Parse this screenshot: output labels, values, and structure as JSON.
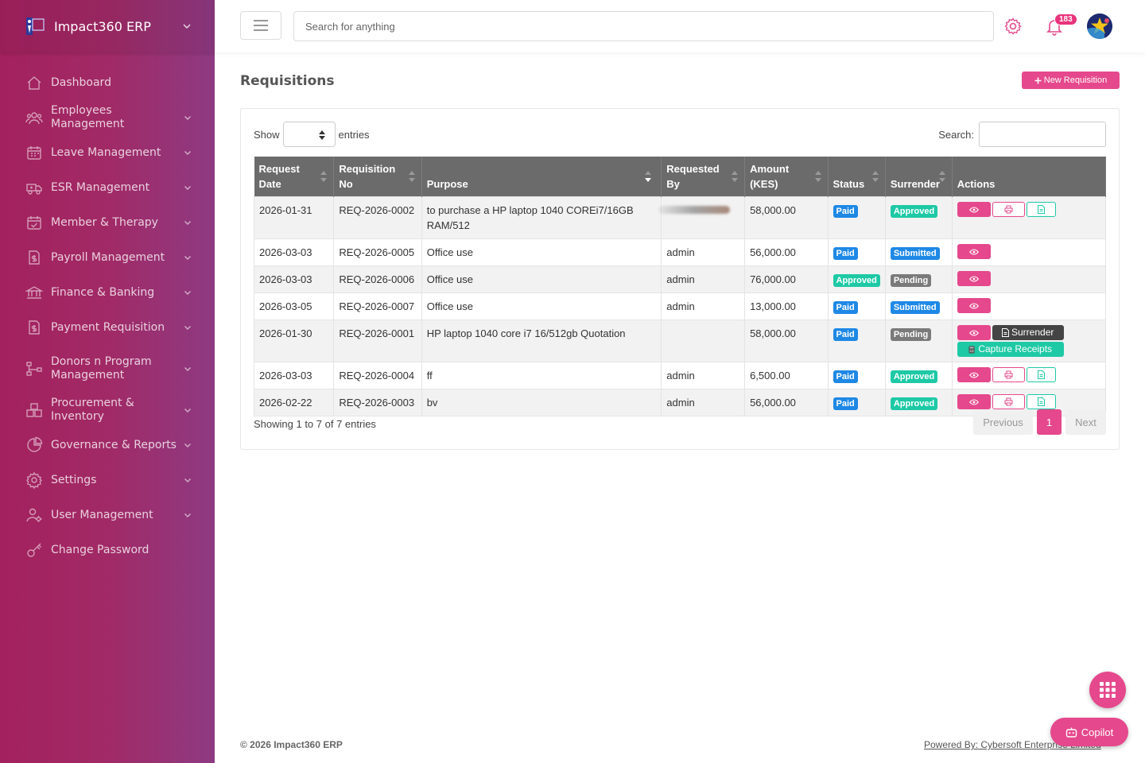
{
  "sidebar": {
    "brand": "Impact360 ERP",
    "items": [
      {
        "label": "Dashboard",
        "icon": "home-icon",
        "caret": false
      },
      {
        "label": "Employees Management",
        "icon": "users-icon",
        "caret": true
      },
      {
        "label": "Leave Management",
        "icon": "calendar-icon",
        "caret": true
      },
      {
        "label": "ESR Management",
        "icon": "truck-icon",
        "caret": true
      },
      {
        "label": "Member & Therapy",
        "icon": "calendar-check-icon",
        "caret": true
      },
      {
        "label": "Payroll Management",
        "icon": "invoice-icon",
        "caret": true
      },
      {
        "label": "Finance & Banking",
        "icon": "bank-icon",
        "caret": true
      },
      {
        "label": "Payment Requisition",
        "icon": "invoice-dollar-icon",
        "caret": true
      },
      {
        "label": "Donors n Program Management",
        "icon": "network-icon",
        "caret": true
      },
      {
        "label": "Procurement & Inventory",
        "icon": "boxes-icon",
        "caret": true
      },
      {
        "label": "Governance & Reports",
        "icon": "pie-chart-icon",
        "caret": true
      },
      {
        "label": "Settings",
        "icon": "gear-icon",
        "caret": true
      },
      {
        "label": "User Management",
        "icon": "user-gear-icon",
        "caret": true
      },
      {
        "label": "Change Password",
        "icon": "key-icon",
        "caret": false
      }
    ]
  },
  "header": {
    "search_placeholder": "Search for anything",
    "notification_count": "183"
  },
  "main": {
    "title": "Requisitions",
    "new_button": "New Requisition",
    "show_label": "Show",
    "entries_label": "entries",
    "search_label": "Search:",
    "columns": [
      "Request Date",
      "Requisition No",
      "Purpose",
      "Requested By",
      "Amount (KES)",
      "Status",
      "Surrender",
      "Actions"
    ],
    "rows": [
      {
        "date": "2026-01-31",
        "no": "REQ-2026-0002",
        "purpose": "to purchase a HP laptop 1040 COREi7/16GB RAM/512",
        "by": "",
        "amount": "58,000.00",
        "status": "Paid",
        "surrender": "Approved",
        "actions": "full"
      },
      {
        "date": "2026-03-03",
        "no": "REQ-2026-0005",
        "purpose": "Office use",
        "by": "admin",
        "amount": "56,000.00",
        "status": "Paid",
        "surrender": "Submitted",
        "actions": "view"
      },
      {
        "date": "2026-03-03",
        "no": "REQ-2026-0006",
        "purpose": "Office use",
        "by": "admin",
        "amount": "76,000.00",
        "status": "Approved",
        "surrender": "Pending",
        "actions": "view"
      },
      {
        "date": "2026-03-05",
        "no": "REQ-2026-0007",
        "purpose": "Office use",
        "by": "admin",
        "amount": "13,000.00",
        "status": "Paid",
        "surrender": "Submitted",
        "actions": "view"
      },
      {
        "date": "2026-01-30",
        "no": "REQ-2026-0001",
        "purpose": "HP laptop 1040 core i7 16/512gb Quotation",
        "by": "",
        "amount": "58,000.00",
        "status": "Paid",
        "surrender": "Pending",
        "actions": "surrender"
      },
      {
        "date": "2026-03-03",
        "no": "REQ-2026-0004",
        "purpose": "ff",
        "by": "admin",
        "amount": "6,500.00",
        "status": "Paid",
        "surrender": "Approved",
        "actions": "full"
      },
      {
        "date": "2026-02-22",
        "no": "REQ-2026-0003",
        "purpose": "bv",
        "by": "admin",
        "amount": "56,000.00",
        "status": "Paid",
        "surrender": "Approved",
        "actions": "full"
      }
    ],
    "surrender_button": "Surrender",
    "capture_button": "Capture Receipts",
    "info": "Showing 1 to 7 of 7 entries",
    "pager": {
      "previous": "Previous",
      "current": "1",
      "next": "Next"
    }
  },
  "footer": {
    "copyright": "© 2026 Impact360 ERP",
    "powered": "Powered By: Cybersoft Enterprise Limited"
  },
  "copilot_label": "Copilot",
  "colors": {
    "accent": "#e5488c",
    "sidebar": "#a3215e",
    "teal": "#1ec9a5",
    "blue": "#1e88e5"
  }
}
